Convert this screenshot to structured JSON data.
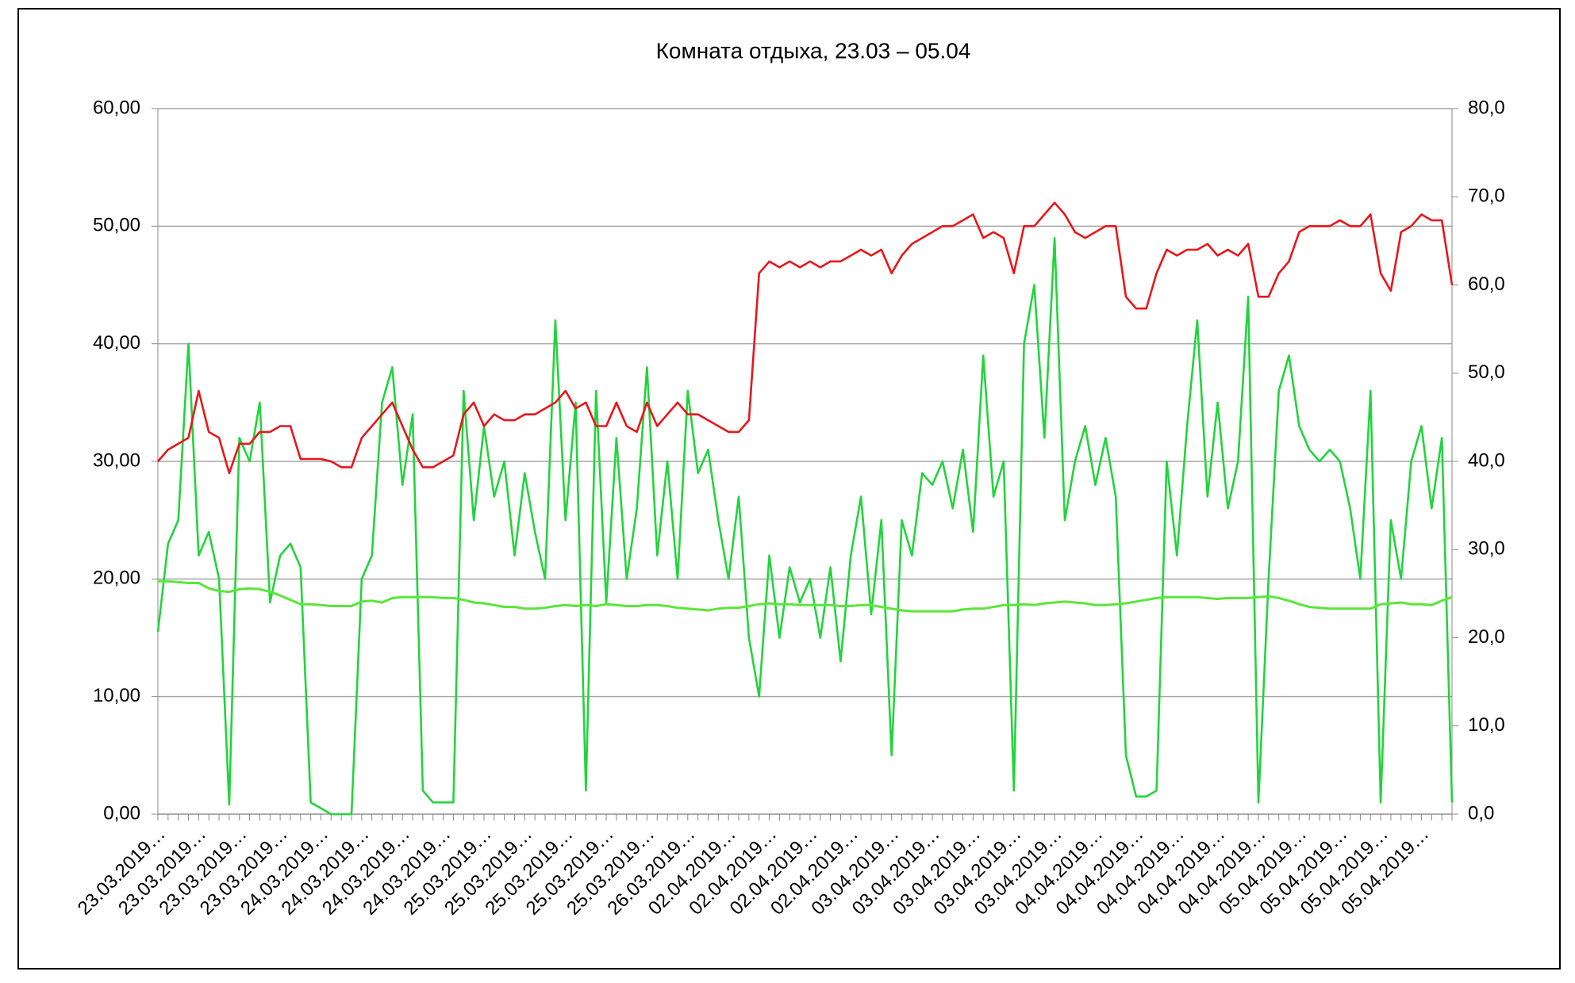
{
  "chart_data": {
    "type": "line",
    "title": "Комната отдыха, 23.03 – 05.04",
    "categories": [
      "23.03.2019…",
      null,
      null,
      null,
      "23.03.2019…",
      null,
      null,
      null,
      "23.03.2019…",
      null,
      null,
      null,
      "23.03.2019…",
      null,
      null,
      null,
      "24.03.2019…",
      null,
      null,
      null,
      "24.03.2019…",
      null,
      null,
      null,
      "24.03.2019…",
      null,
      null,
      null,
      "24.03.2019…",
      null,
      null,
      null,
      "25.03.2019…",
      null,
      null,
      null,
      "25.03.2019…",
      null,
      null,
      null,
      "25.03.2019…",
      null,
      null,
      null,
      "25.03.2019…",
      null,
      null,
      null,
      "25.03.2019…",
      null,
      null,
      null,
      "26.03.2019…",
      null,
      null,
      null,
      "02.04.2019…",
      null,
      null,
      null,
      "02.04.2019…",
      null,
      null,
      null,
      "02.04.2019…",
      null,
      null,
      null,
      "02.04.2019…",
      null,
      null,
      null,
      "03.04.2019…",
      null,
      null,
      null,
      "03.04.2019…",
      null,
      null,
      null,
      "03.04.2019…",
      null,
      null,
      null,
      "03.04.2019…",
      null,
      null,
      null,
      "03.04.2019…",
      null,
      null,
      null,
      "04.04.2019…",
      null,
      null,
      null,
      "04.04.2019…",
      null,
      null,
      null,
      "04.04.2019…",
      null,
      null,
      null,
      "04.04.2019…",
      null,
      null,
      null,
      "04.04.2019…",
      null,
      null,
      null,
      "05.04.2019…",
      null,
      null,
      null,
      "05.04.2019…",
      null,
      null,
      null,
      "05.04.2019…",
      null,
      null,
      null,
      "05.04.2019…",
      null,
      null,
      null
    ],
    "series": [
      {
        "color": "#22d43c",
        "values": [
          15.5,
          23,
          25,
          40,
          22,
          24,
          20,
          0.8,
          32,
          30,
          35,
          18,
          22,
          23,
          21,
          1,
          0.5,
          0,
          0,
          0,
          20,
          22,
          35,
          38,
          28,
          34,
          2,
          1,
          1,
          1,
          36,
          25,
          33,
          27,
          30,
          22,
          29,
          24,
          20,
          42,
          25,
          35,
          2,
          36,
          18,
          32,
          20,
          26,
          38,
          22,
          30,
          20,
          36,
          29,
          31,
          25,
          20,
          27,
          15,
          10,
          22,
          15,
          21,
          18,
          20,
          15,
          21,
          13,
          22,
          27,
          17,
          25,
          5,
          25,
          22,
          29,
          28,
          30,
          26,
          31,
          24,
          39,
          27,
          30,
          2,
          40,
          45,
          32,
          49,
          25,
          30,
          33,
          28,
          32,
          27,
          5,
          1.5,
          1.5,
          2,
          30,
          22,
          33,
          42,
          27,
          35,
          26,
          30,
          44,
          1,
          20,
          36,
          39,
          33,
          31,
          30,
          31,
          30,
          26,
          20,
          36,
          1,
          25,
          20,
          30,
          33,
          26,
          32,
          1
        ]
      },
      {
        "color": "#e8161b",
        "values": [
          30,
          31,
          31.5,
          32,
          36,
          32.5,
          32,
          29,
          31.5,
          31.5,
          32.5,
          32.5,
          33,
          33,
          30.2,
          30.2,
          30.2,
          30,
          29.5,
          29.5,
          32,
          33,
          34,
          35,
          33,
          31,
          29.5,
          29.5,
          30,
          30.5,
          34,
          35,
          33,
          34,
          33.5,
          33.5,
          34,
          34,
          34.5,
          35,
          36,
          34.5,
          35,
          33,
          33,
          35,
          33,
          32.5,
          35,
          33,
          34,
          35,
          34,
          34,
          33.5,
          33,
          32.5,
          32.5,
          33.5,
          46,
          47,
          46.5,
          47,
          46.5,
          47,
          46.5,
          47,
          47,
          47.5,
          48,
          47.5,
          48,
          46,
          47.5,
          48.5,
          49,
          49.5,
          50,
          50,
          50.5,
          51,
          49,
          49.5,
          49,
          46,
          50,
          50,
          51,
          52,
          51,
          49.5,
          49,
          49.5,
          50,
          50,
          44,
          43,
          43,
          46,
          48,
          47.5,
          48,
          48,
          48.5,
          47.5,
          48,
          47.5,
          48.5,
          44,
          44,
          46,
          47,
          49.5,
          50,
          50,
          50,
          50.5,
          50,
          50,
          51,
          46,
          44.5,
          49.5,
          50,
          51,
          50.5,
          50.5,
          45
        ]
      },
      {
        "color": "#5ae63a",
        "axis": "y2",
        "values": [
          26.4,
          26.4,
          26.3,
          26.2,
          26.2,
          25.6,
          25.3,
          25.2,
          25.5,
          25.6,
          25.5,
          25.2,
          24.8,
          24.3,
          23.8,
          23.8,
          23.7,
          23.6,
          23.6,
          23.6,
          24.1,
          24.2,
          24.0,
          24.5,
          24.6,
          24.6,
          24.6,
          24.6,
          24.5,
          24.5,
          24.3,
          24.0,
          23.9,
          23.7,
          23.5,
          23.5,
          23.3,
          23.3,
          23.4,
          23.6,
          23.7,
          23.6,
          23.7,
          23.6,
          23.8,
          23.7,
          23.6,
          23.6,
          23.7,
          23.7,
          23.6,
          23.4,
          23.3,
          23.2,
          23.1,
          23.3,
          23.4,
          23.4,
          23.6,
          23.8,
          23.9,
          23.8,
          23.8,
          23.7,
          23.7,
          23.7,
          23.7,
          23.6,
          23.6,
          23.7,
          23.7,
          23.5,
          23.3,
          23.1,
          23.0,
          23.0,
          23.0,
          23.0,
          23.0,
          23.2,
          23.3,
          23.3,
          23.5,
          23.7,
          23.7,
          23.8,
          23.7,
          23.9,
          24.0,
          24.1,
          24.0,
          23.9,
          23.7,
          23.7,
          23.8,
          23.9,
          24.1,
          24.3,
          24.5,
          24.6,
          24.6,
          24.6,
          24.6,
          24.5,
          24.4,
          24.5,
          24.5,
          24.5,
          24.6,
          24.7,
          24.5,
          24.2,
          23.8,
          23.5,
          23.4,
          23.3,
          23.3,
          23.3,
          23.3,
          23.3,
          23.8,
          23.9,
          24.0,
          23.8,
          23.8,
          23.7,
          24.2,
          24.6
        ]
      }
    ],
    "ylim": [
      0,
      60
    ],
    "yticks": [
      {
        "value": 0,
        "label": "0,00"
      },
      {
        "value": 10,
        "label": "10,00"
      },
      {
        "value": 20,
        "label": "20,00"
      },
      {
        "value": 30,
        "label": "30,00"
      },
      {
        "value": 40,
        "label": "40,00"
      },
      {
        "value": 50,
        "label": "50,00"
      },
      {
        "value": 60,
        "label": "60,00"
      }
    ],
    "y2lim": [
      0,
      80
    ],
    "y2ticks": [
      {
        "value": 0,
        "label": "0,0"
      },
      {
        "value": 10,
        "label": "10,0"
      },
      {
        "value": 20,
        "label": "20,0"
      },
      {
        "value": 30,
        "label": "30,0"
      },
      {
        "value": 40,
        "label": "40,0"
      },
      {
        "value": 50,
        "label": "50,0"
      },
      {
        "value": 60,
        "label": "60,0"
      },
      {
        "value": 70,
        "label": "70,0"
      },
      {
        "value": 80,
        "label": "80,0"
      }
    ],
    "grid": true
  }
}
